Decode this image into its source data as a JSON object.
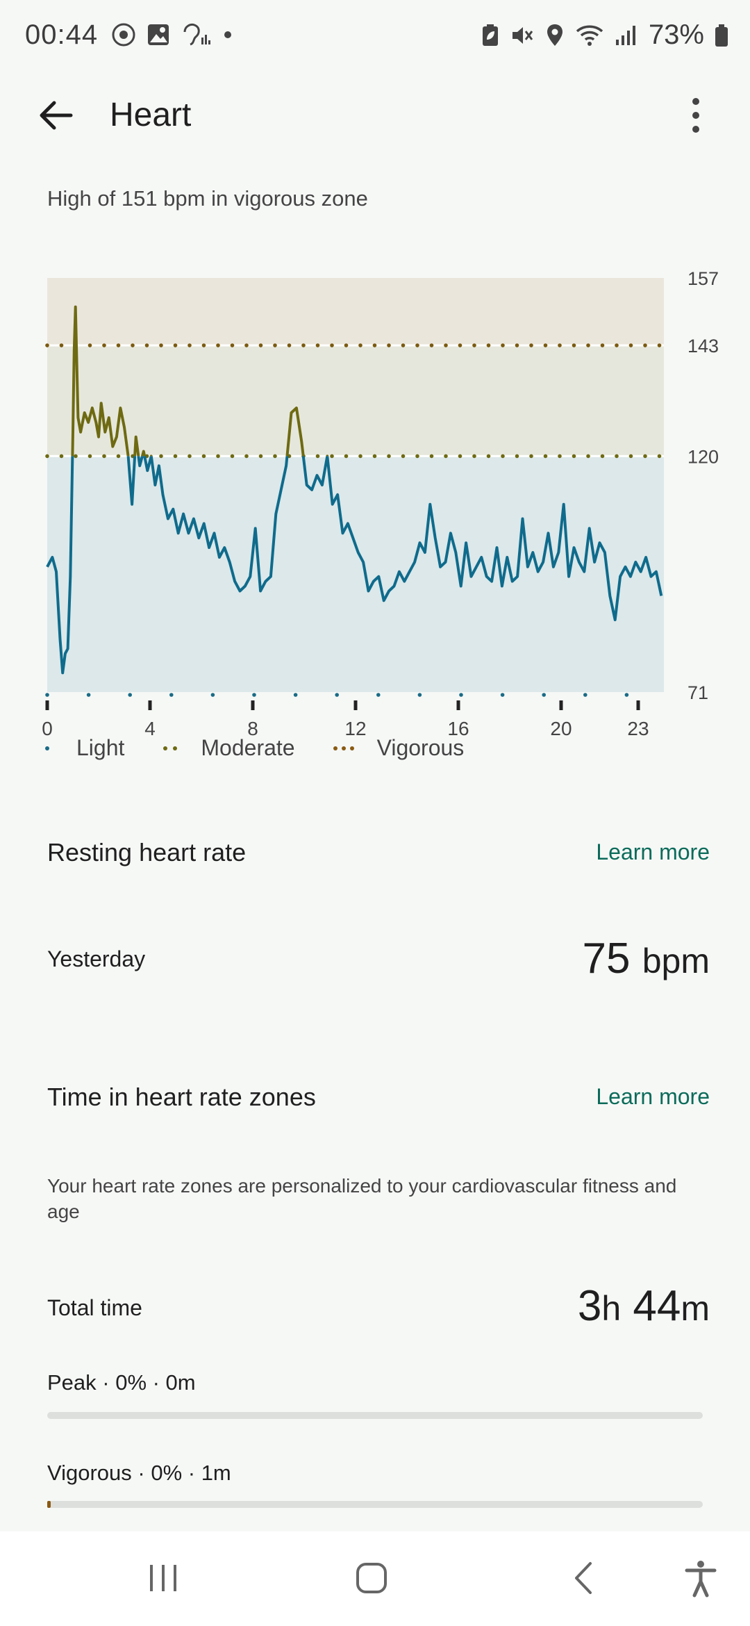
{
  "status_bar": {
    "time": "00:44",
    "battery": "73%",
    "left_icons": [
      "record-icon",
      "gallery-icon",
      "hearing-icon",
      "dot-icon"
    ],
    "right_icons": [
      "battery-saver-icon",
      "mute-icon",
      "location-icon",
      "wifi-icon",
      "signal-icon",
      "battery-icon"
    ]
  },
  "app_bar": {
    "title": "Heart"
  },
  "summary": "High of 151 bpm in vigorous zone",
  "chart_data": {
    "type": "line",
    "y_ticks": [
      "157",
      "143",
      "120",
      "71"
    ],
    "ylim": [
      71,
      157
    ],
    "x_ticks": [
      "0",
      "4",
      "8",
      "12",
      "16",
      "20",
      "23"
    ],
    "xlim": [
      0,
      24
    ],
    "zones": [
      {
        "name": "Light",
        "from": 71,
        "to": 120,
        "color": "#dce8ea"
      },
      {
        "name": "Moderate",
        "from": 120,
        "to": 143,
        "color": "#e6e7dc"
      },
      {
        "name": "Vigorous",
        "from": 143,
        "to": 157,
        "color": "#ebe6dc"
      }
    ],
    "legend": [
      {
        "label": "Light",
        "color": "#1a6b86"
      },
      {
        "label": "Moderate",
        "color": "#6e6a12"
      },
      {
        "label": "Vigorous",
        "color": "#8a5a12"
      }
    ],
    "series": [
      {
        "line_color": "#0f6b8c",
        "high_color": "#6e6a12",
        "x": [
          0,
          0.2,
          0.35,
          0.5,
          0.6,
          0.7,
          0.8,
          0.9,
          1.0,
          1.05,
          1.1,
          1.2,
          1.3,
          1.45,
          1.6,
          1.75,
          1.9,
          2.0,
          2.1,
          2.25,
          2.4,
          2.55,
          2.7,
          2.85,
          3.0,
          3.15,
          3.3,
          3.45,
          3.6,
          3.75,
          3.9,
          4.05,
          4.2,
          4.35,
          4.5,
          4.7,
          4.9,
          5.1,
          5.3,
          5.5,
          5.7,
          5.9,
          6.1,
          6.3,
          6.5,
          6.7,
          6.9,
          7.1,
          7.3,
          7.5,
          7.7,
          7.9,
          8.1,
          8.3,
          8.5,
          8.7,
          8.9,
          9.1,
          9.3,
          9.5,
          9.7,
          9.9,
          10.1,
          10.3,
          10.5,
          10.7,
          10.9,
          11.1,
          11.3,
          11.5,
          11.7,
          11.9,
          12.1,
          12.3,
          12.5,
          12.7,
          12.9,
          13.1,
          13.3,
          13.5,
          13.7,
          13.9,
          14.1,
          14.3,
          14.5,
          14.7,
          14.9,
          15.1,
          15.3,
          15.5,
          15.7,
          15.9,
          16.1,
          16.3,
          16.5,
          16.7,
          16.9,
          17.1,
          17.3,
          17.5,
          17.7,
          17.9,
          18.1,
          18.3,
          18.5,
          18.7,
          18.9,
          19.1,
          19.3,
          19.5,
          19.7,
          19.9,
          20.1,
          20.3,
          20.5,
          20.7,
          20.9,
          21.1,
          21.3,
          21.5,
          21.7,
          21.9,
          22.1,
          22.3,
          22.5,
          22.7,
          22.9,
          23.1,
          23.3,
          23.5,
          23.7,
          23.9
        ],
        "y": [
          97,
          99,
          96,
          82,
          75,
          79,
          80,
          95,
          125,
          142,
          151,
          128,
          125,
          129,
          127,
          130,
          127,
          124,
          131,
          125,
          128,
          122,
          124,
          130,
          126,
          120,
          110,
          124,
          118,
          121,
          117,
          120,
          114,
          118,
          112,
          107,
          109,
          104,
          108,
          104,
          107,
          103,
          106,
          101,
          104,
          99,
          101,
          98,
          94,
          92,
          93,
          95,
          105,
          92,
          94,
          95,
          108,
          113,
          118,
          129,
          130,
          123,
          114,
          113,
          116,
          114,
          120,
          110,
          112,
          104,
          106,
          103,
          100,
          98,
          92,
          94,
          95,
          90,
          92,
          93,
          96,
          94,
          96,
          98,
          102,
          100,
          110,
          103,
          97,
          98,
          104,
          100,
          93,
          102,
          95,
          97,
          99,
          95,
          94,
          101,
          93,
          99,
          94,
          95,
          107,
          97,
          100,
          96,
          98,
          104,
          97,
          100,
          110,
          95,
          101,
          98,
          96,
          105,
          98,
          102,
          100,
          91,
          86,
          95,
          97,
          95,
          98,
          96,
          99,
          95,
          96,
          91
        ]
      }
    ]
  },
  "resting": {
    "title": "Resting heart rate",
    "learn_more": "Learn more",
    "row_label": "Yesterday",
    "value": "75",
    "unit": "bpm"
  },
  "zones_section": {
    "title": "Time in heart rate zones",
    "learn_more": "Learn more",
    "description": "Your heart rate zones are personalized to your cardiovascular fitness and age",
    "total_label": "Total time",
    "total_hours": "3",
    "total_h_unit": "h",
    "total_minutes": "44",
    "total_m_unit": "m",
    "zones": [
      {
        "label": "Peak · 0% · 0m",
        "percent": 0
      },
      {
        "label": "Vigorous · 0% · 1m",
        "percent": 0.5
      }
    ]
  },
  "nav_bar": {
    "buttons": [
      "recent-apps-icon",
      "home-icon",
      "back-icon",
      "accessibility-icon"
    ]
  }
}
